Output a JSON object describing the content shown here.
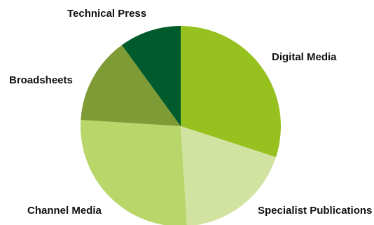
{
  "chart_data": {
    "type": "pie",
    "title": "",
    "start_angle_deg": 0,
    "direction": "clockwise",
    "slices": [
      {
        "label": "Digital Media",
        "value": 30,
        "color": "#96c11f"
      },
      {
        "label": "Specialist Publications",
        "value": 19,
        "color": "#d2e3a1"
      },
      {
        "label": "Channel Media",
        "value": 27,
        "color": "#b9d66b"
      },
      {
        "label": "Broadsheets",
        "value": 14,
        "color": "#7e9b35"
      },
      {
        "label": "Technical Press",
        "value": 10,
        "color": "#005b2c"
      }
    ]
  }
}
